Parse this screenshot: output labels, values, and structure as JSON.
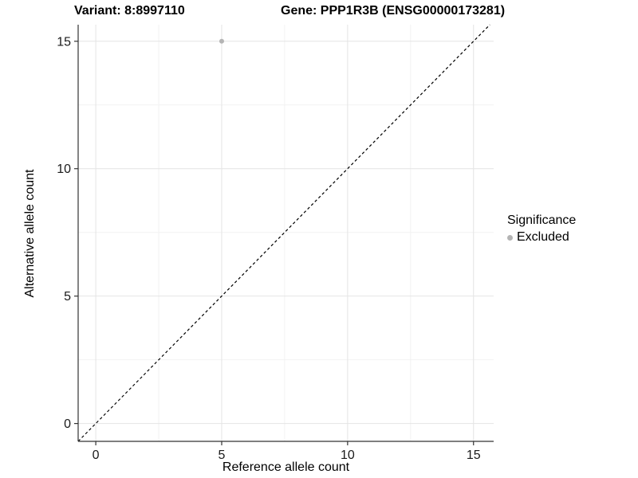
{
  "chart_data": {
    "type": "scatter",
    "title_left": "Variant: 8:8997110",
    "title_right": "Gene: PPP1R3B (ENSG00000173281)",
    "xlabel": "Reference allele count",
    "ylabel": "Alternative allele count",
    "xlim": [
      -0.7,
      15.8
    ],
    "ylim": [
      -0.7,
      15.65
    ],
    "x_ticks": [
      0,
      5,
      10,
      15
    ],
    "y_ticks": [
      0,
      5,
      10,
      15
    ],
    "x_minor_ticks": [
      2.5,
      7.5,
      12.5
    ],
    "y_minor_ticks": [
      2.5,
      7.5,
      12.5
    ],
    "grid": true,
    "points": [
      {
        "x": 5,
        "y": 15,
        "series": "Excluded"
      }
    ],
    "series": [
      {
        "name": "Excluded",
        "color": "#b4b4b4"
      }
    ],
    "identity_line": {
      "style": "dashed",
      "color": "#000000"
    },
    "legend": {
      "title": "Significance",
      "position": "right",
      "entries": [
        {
          "label": "Excluded",
          "color": "#b4b4b4",
          "marker": "circle"
        }
      ]
    }
  },
  "colors": {
    "background": "#ffffff",
    "axis_line": "#333333",
    "grid_major": "#e4e4e4",
    "grid_minor": "#f2f2f2",
    "tick_label": "#1a1a1a",
    "title_text": "#000000"
  }
}
